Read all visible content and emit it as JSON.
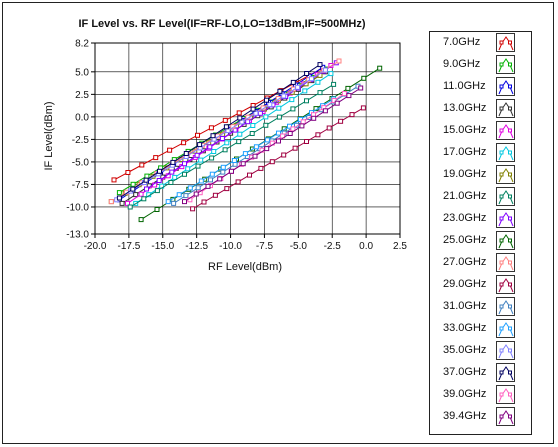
{
  "chart_data": {
    "type": "line",
    "title": "IF Level vs. RF Level(IF=RF-LO,LO=13dBm,IF=500MHz)",
    "xlabel": "RF Level(dBm)",
    "ylabel": "IF Level(dBm)",
    "xlim": [
      -20.0,
      2.5
    ],
    "ylim": [
      -13.0,
      8.2
    ],
    "x_ticks": [
      "-20.0",
      "-17.5",
      "-15.0",
      "-12.5",
      "-10.0",
      "-7.5",
      "-5.0",
      "-2.5",
      "0.0",
      "2.5"
    ],
    "y_ticks": [
      {
        "value": 8.2,
        "label": "8.2"
      },
      {
        "value": 5.0,
        "label": "5.0"
      },
      {
        "value": 2.5,
        "label": "2.5"
      },
      {
        "value": 0.0,
        "label": "0.0"
      },
      {
        "value": -2.5,
        "label": "-2.5"
      },
      {
        "value": -5.0,
        "label": "-5.0"
      },
      {
        "value": -7.5,
        "label": "-7.5"
      },
      {
        "value": -10.0,
        "label": "-10.0"
      },
      {
        "value": -13.0,
        "label": "-13.0"
      }
    ],
    "grid": true,
    "legend_position": "right",
    "series": [
      {
        "name": "7.0GHz",
        "color": "#d00000",
        "x_start": -18.6,
        "x_end": -3.2,
        "y_start": -7.0,
        "y_end": 5.4
      },
      {
        "name": "9.0GHz",
        "color": "#00b000",
        "x_start": -18.2,
        "x_end": -3.0,
        "y_start": -8.4,
        "y_end": 5.3
      },
      {
        "name": "11.0GHz",
        "color": "#0000e0",
        "x_start": -18.2,
        "x_end": -3.2,
        "y_start": -9.2,
        "y_end": 5.5
      },
      {
        "name": "13.0GHz",
        "color": "#303030",
        "x_start": -18.0,
        "x_end": -3.0,
        "y_start": -9.6,
        "y_end": 5.0
      },
      {
        "name": "15.0GHz",
        "color": "#e000e0",
        "x_start": -17.6,
        "x_end": -2.6,
        "y_start": -9.6,
        "y_end": 5.7
      },
      {
        "name": "17.0GHz",
        "color": "#00c8e0",
        "x_start": -17.0,
        "x_end": -2.6,
        "y_start": -9.6,
        "y_end": 4.8
      },
      {
        "name": "19.0GHz",
        "color": "#808000",
        "x_start": -18.8,
        "x_end": -3.4,
        "y_start": -9.4,
        "y_end": 4.6
      },
      {
        "name": "21.0GHz",
        "color": "#008060",
        "x_start": -17.4,
        "x_end": -2.4,
        "y_start": -10.0,
        "y_end": 3.6
      },
      {
        "name": "23.0GHz",
        "color": "#8000ff",
        "x_start": -16.2,
        "x_end": -2.2,
        "y_start": -8.0,
        "y_end": 6.0
      },
      {
        "name": "25.0GHz",
        "color": "#006400",
        "x_start": -16.6,
        "x_end": 1.0,
        "y_start": -11.4,
        "y_end": 5.4
      },
      {
        "name": "27.0GHz",
        "color": "#ff8080",
        "x_start": -18.8,
        "x_end": -2.0,
        "y_start": -9.4,
        "y_end": 6.2
      },
      {
        "name": "29.0GHz",
        "color": "#a00040",
        "x_start": -12.8,
        "x_end": -0.2,
        "y_start": -10.2,
        "y_end": 1.0
      },
      {
        "name": "31.0GHz",
        "color": "#4080c0",
        "x_start": -14.2,
        "x_end": -0.6,
        "y_start": -9.6,
        "y_end": 3.4
      },
      {
        "name": "33.0GHz",
        "color": "#20a0ff",
        "x_start": -14.6,
        "x_end": -2.4,
        "y_start": -9.4,
        "y_end": 2.0
      },
      {
        "name": "35.0GHz",
        "color": "#8080ff",
        "x_start": -18.4,
        "x_end": -3.0,
        "y_start": -9.2,
        "y_end": 5.2
      },
      {
        "name": "37.0GHz",
        "color": "#000060",
        "x_start": -18.2,
        "x_end": -3.4,
        "y_start": -9.0,
        "y_end": 5.8
      },
      {
        "name": "39.0GHz",
        "color": "#ff60c0",
        "x_start": -13.0,
        "x_end": -1.6,
        "y_start": -9.2,
        "y_end": 2.6
      },
      {
        "name": "39.4GHz",
        "color": "#800080",
        "x_start": -13.4,
        "x_end": -0.4,
        "y_start": -9.4,
        "y_end": 3.2
      }
    ],
    "points_per_series": 16
  }
}
